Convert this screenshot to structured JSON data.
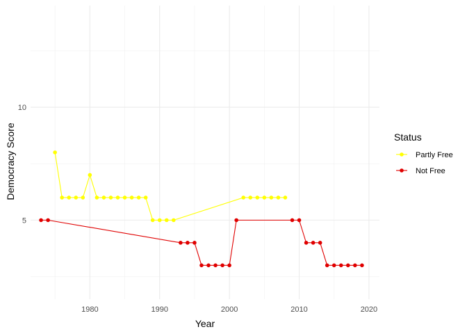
{
  "chart_data": {
    "type": "line",
    "title": "",
    "xlabel": "Year",
    "ylabel": "Democracy Score",
    "xlim": [
      1971.5,
      2021.5
    ],
    "ylim": [
      1.5,
      14.5
    ],
    "x_ticks": [
      1980,
      1990,
      2000,
      2010,
      2020
    ],
    "x_minor_ticks": [
      1975,
      1985,
      1995,
      2005,
      2015
    ],
    "y_ticks": [
      5,
      10
    ],
    "y_minor_ticks": [
      2.5,
      7.5,
      12.5
    ],
    "legend_title": "Status",
    "legend_position": "right",
    "series": [
      {
        "name": "Partly Free",
        "color": "#FFFF00",
        "points": [
          [
            1975,
            8
          ],
          [
            1976,
            6
          ],
          [
            1977,
            6
          ],
          [
            1978,
            6
          ],
          [
            1979,
            6
          ],
          [
            1980,
            7
          ],
          [
            1981,
            6
          ],
          [
            1982,
            6
          ],
          [
            1983,
            6
          ],
          [
            1984,
            6
          ],
          [
            1985,
            6
          ],
          [
            1986,
            6
          ],
          [
            1987,
            6
          ],
          [
            1988,
            6
          ],
          [
            1989,
            5
          ],
          [
            1990,
            5
          ],
          [
            1991,
            5
          ],
          [
            1992,
            5
          ],
          [
            2002,
            6
          ],
          [
            2003,
            6
          ],
          [
            2004,
            6
          ],
          [
            2005,
            6
          ],
          [
            2006,
            6
          ],
          [
            2007,
            6
          ],
          [
            2008,
            6
          ]
        ]
      },
      {
        "name": "Not Free",
        "color": "#E00000",
        "points": [
          [
            1973,
            5
          ],
          [
            1974,
            5
          ],
          [
            1993,
            4
          ],
          [
            1994,
            4
          ],
          [
            1995,
            4
          ],
          [
            1996,
            3
          ],
          [
            1997,
            3
          ],
          [
            1998,
            3
          ],
          [
            1999,
            3
          ],
          [
            2000,
            3
          ],
          [
            2001,
            5
          ],
          [
            2009,
            5
          ],
          [
            2010,
            5
          ],
          [
            2011,
            4
          ],
          [
            2012,
            4
          ],
          [
            2013,
            4
          ],
          [
            2014,
            3
          ],
          [
            2015,
            3
          ],
          [
            2016,
            3
          ],
          [
            2017,
            3
          ],
          [
            2018,
            3
          ],
          [
            2019,
            3
          ]
        ]
      }
    ]
  }
}
